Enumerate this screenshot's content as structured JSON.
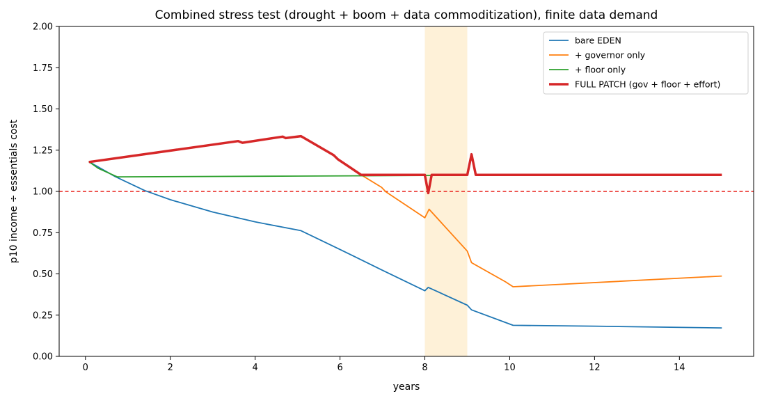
{
  "chart_data": {
    "type": "line",
    "title": "Combined stress test (drought + boom + data commoditization), finite data demand",
    "xlabel": "years",
    "ylabel": "p10 income ÷ essentials cost",
    "xlim": [
      -0.62,
      15.75
    ],
    "ylim": [
      0,
      2
    ],
    "xticks": [
      0,
      2,
      4,
      6,
      8,
      10,
      12,
      14
    ],
    "xtick_labels": [
      "0",
      "2",
      "4",
      "6",
      "8",
      "10",
      "12",
      "14"
    ],
    "yticks": [
      0,
      0.25,
      0.5,
      0.75,
      1.0,
      1.25,
      1.5,
      1.75,
      2.0
    ],
    "ytick_labels": [
      "0.00",
      "0.25",
      "0.50",
      "0.75",
      "1.00",
      "1.25",
      "1.50",
      "1.75",
      "2.00"
    ],
    "grid": false,
    "legend_position": "top-right",
    "reference_line": {
      "y": 1.0,
      "color": "#e8201a",
      "style": "dashed"
    },
    "shaded_band": {
      "x_start": 8.0,
      "x_end": 9.0,
      "color": "#fdebc8"
    },
    "series": [
      {
        "name": "bare EDEN",
        "color": "#1f77b4",
        "width": 1.8,
        "points": [
          [
            0.08,
            1.18
          ],
          [
            0.7,
            1.09
          ],
          [
            1.4,
            1.005
          ],
          [
            2.0,
            0.95
          ],
          [
            3.0,
            0.875
          ],
          [
            4.0,
            0.815
          ],
          [
            5.08,
            0.762
          ],
          [
            6.0,
            0.648
          ],
          [
            7.0,
            0.522
          ],
          [
            8.0,
            0.398
          ],
          [
            8.08,
            0.418
          ],
          [
            9.0,
            0.31
          ],
          [
            9.1,
            0.282
          ],
          [
            10.08,
            0.188
          ],
          [
            12.0,
            0.183
          ],
          [
            15.0,
            0.172
          ]
        ]
      },
      {
        "name": "+ governor only",
        "color": "#ff7f0e",
        "width": 1.8,
        "points": [
          [
            0.08,
            1.18
          ],
          [
            3.6,
            1.305
          ],
          [
            3.7,
            1.295
          ],
          [
            4.65,
            1.332
          ],
          [
            4.72,
            1.323
          ],
          [
            5.08,
            1.335
          ],
          [
            5.85,
            1.22
          ],
          [
            5.95,
            1.195
          ],
          [
            6.5,
            1.1
          ],
          [
            6.98,
            1.025
          ],
          [
            7.08,
            0.998
          ],
          [
            8.0,
            0.84
          ],
          [
            8.1,
            0.892
          ],
          [
            9.0,
            0.638
          ],
          [
            9.1,
            0.568
          ],
          [
            9.9,
            0.452
          ],
          [
            10.08,
            0.422
          ],
          [
            15.0,
            0.487
          ]
        ]
      },
      {
        "name": "+ floor only",
        "color": "#2ca02c",
        "width": 1.8,
        "points": [
          [
            0.08,
            1.18
          ],
          [
            0.3,
            1.14
          ],
          [
            0.75,
            1.088
          ],
          [
            5.0,
            1.093
          ],
          [
            9.0,
            1.098
          ]
        ]
      },
      {
        "name": "FULL PATCH (gov + floor + effort)",
        "color": "#d62728",
        "width": 3.5,
        "points": [
          [
            0.08,
            1.178
          ],
          [
            3.6,
            1.305
          ],
          [
            3.7,
            1.295
          ],
          [
            4.65,
            1.332
          ],
          [
            4.72,
            1.323
          ],
          [
            5.08,
            1.335
          ],
          [
            5.85,
            1.22
          ],
          [
            5.95,
            1.195
          ],
          [
            6.5,
            1.1
          ],
          [
            8.0,
            1.1
          ],
          [
            8.08,
            0.99
          ],
          [
            8.16,
            1.1
          ],
          [
            9.0,
            1.1
          ],
          [
            9.1,
            1.225
          ],
          [
            9.2,
            1.1
          ],
          [
            15.0,
            1.1
          ]
        ]
      }
    ]
  }
}
